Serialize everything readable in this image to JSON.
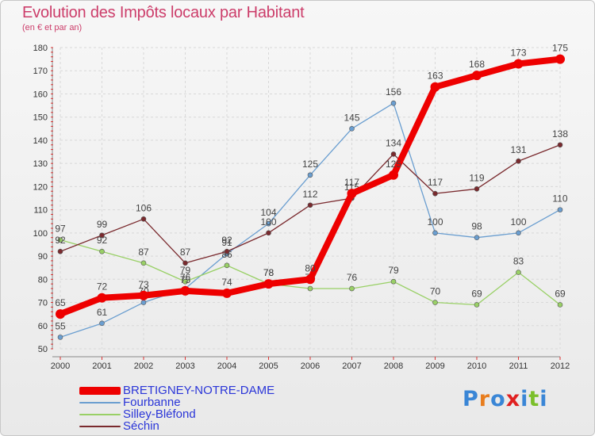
{
  "title": "Evolution des Impôts locaux par Habitant",
  "subtitle": "(en € et par an)",
  "logo_text": "Proxiti",
  "chart_data": {
    "type": "line",
    "title": "Evolution des Impôts locaux par Habitant",
    "subtitle": "(en € et par an)",
    "x": [
      "2000",
      "2001",
      "2002",
      "2003",
      "2004",
      "2005",
      "2006",
      "2007",
      "2008",
      "2009",
      "2010",
      "2011",
      "2012"
    ],
    "ylim": [
      50,
      180
    ],
    "yticks": [
      "50",
      "60",
      "70",
      "80",
      "90",
      "100",
      "110",
      "120",
      "130",
      "140",
      "150",
      "160",
      "170",
      "180"
    ],
    "grid": true,
    "legend_position": "bottom-left",
    "series": [
      {
        "name": "Fourbanne",
        "color": "#6a9ed0",
        "values": [
          55,
          61,
          70,
          76,
          91,
          104,
          125,
          145,
          156,
          100,
          98,
          100,
          110
        ]
      },
      {
        "name": "Silley-Bléfond",
        "color": "#99d066",
        "values": [
          97,
          92,
          87,
          79,
          86,
          78,
          76,
          76,
          79,
          70,
          69,
          83,
          69
        ]
      },
      {
        "name": "Séchin",
        "color": "#7a2a2e",
        "values": [
          92,
          99,
          106,
          87,
          92,
          100,
          112,
          115,
          134,
          117,
          119,
          131,
          138
        ]
      },
      {
        "name": "BRETIGNEY-NOTRE-DAME",
        "color": "#ee0000",
        "values": [
          65,
          72,
          73,
          75,
          74,
          78,
          80,
          117,
          125,
          163,
          168,
          173,
          175
        ]
      }
    ],
    "legend": [
      "BRETIGNEY-NOTRE-DAME",
      "Fourbanne",
      "Silley-Bléfond",
      "Séchin"
    ]
  }
}
